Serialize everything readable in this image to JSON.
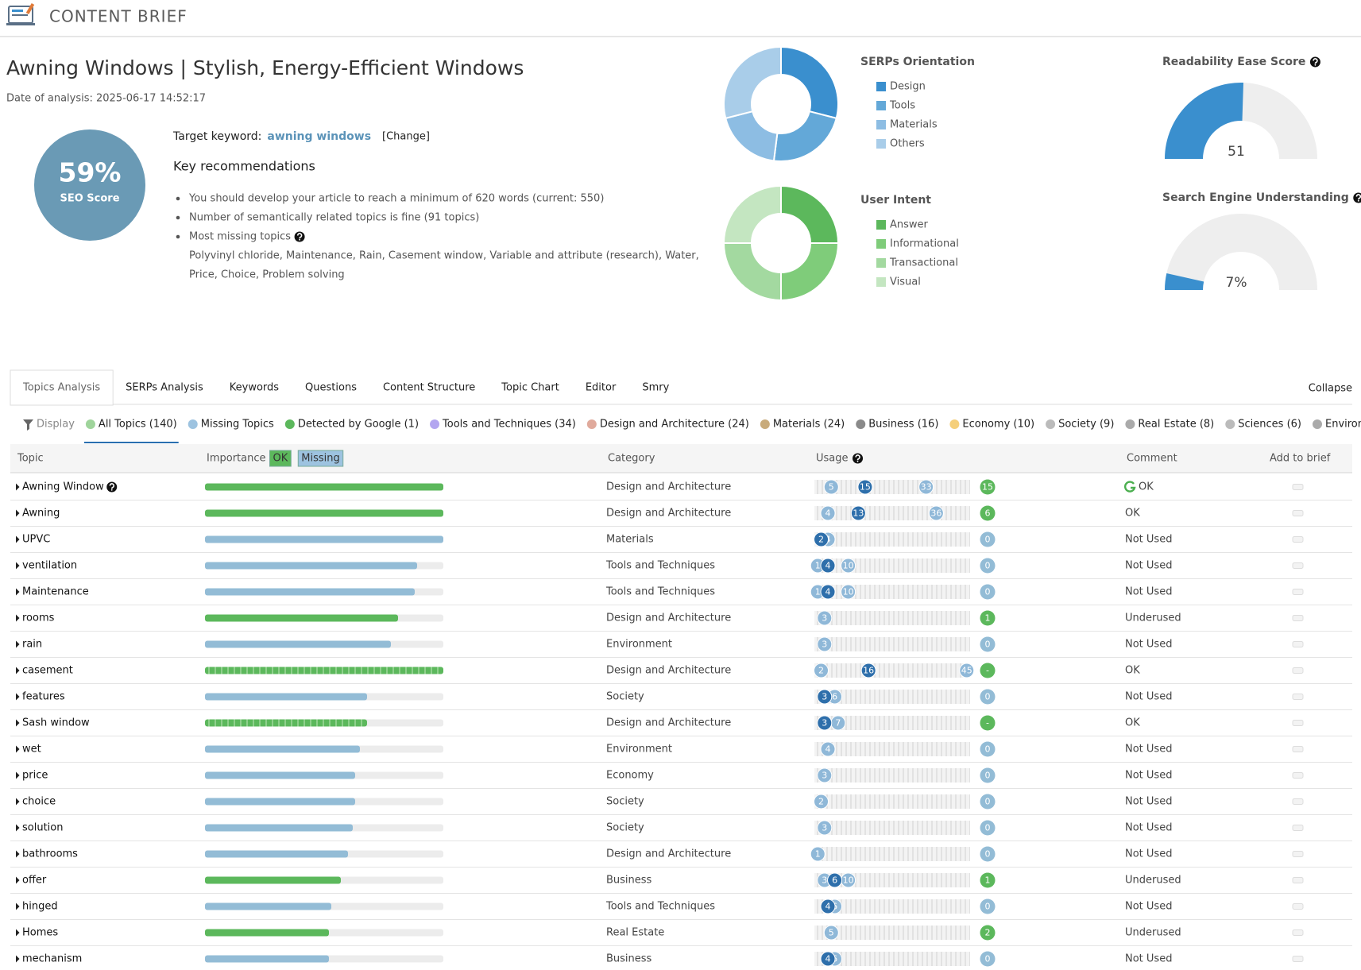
{
  "header": {
    "title": "CONTENT BRIEF"
  },
  "page": {
    "title": "Awning Windows | Stylish, Energy-Efficient Windows",
    "date": "Date of analysis: 2025-06-17 14:52:17"
  },
  "seo_score": {
    "score": "59%",
    "label": "SEO Score"
  },
  "target": {
    "label": "Target keyword:",
    "keyword": "awning windows",
    "change": "[Change]"
  },
  "recommendations": {
    "title": "Key recommendations",
    "items": [
      "You should develop your article to reach a minimum of 620 words (current: 550)",
      "Number of semantically related topics is fine (91 topics)",
      "Most missing topics"
    ],
    "missing_topics": [
      "Polyvinyl chloride, Maintenance, Rain, Casement window, Variable and attribute (research), Water,",
      "Price, Choice, Problem solving"
    ]
  },
  "serps_orientation": {
    "type": "pie",
    "title": "SERPs Orientation",
    "categories": [
      "Design",
      "Tools",
      "Materials",
      "Others"
    ],
    "values": [
      29,
      23,
      19,
      29
    ],
    "colors": [
      "#3a8fce",
      "#63a8d8",
      "#8dbde3",
      "#a9cde9"
    ]
  },
  "user_intent": {
    "type": "pie",
    "title": "User Intent",
    "categories": [
      "Answer",
      "Informational",
      "Transactional",
      "Visual"
    ],
    "values": [
      25,
      25,
      25,
      25
    ],
    "colors": [
      "#5cb85c",
      "#7fcc7a",
      "#a3d9a0",
      "#c4e6c1"
    ]
  },
  "readability": {
    "type": "gauge",
    "title": "Readability Ease Score",
    "value": 51,
    "ylim": [
      0,
      100
    ],
    "color": "#3a8fce"
  },
  "understanding": {
    "type": "gauge",
    "title": "Search Engine Understanding",
    "value": 7,
    "value_label": "7%",
    "ylim": [
      0,
      100
    ],
    "color": "#3a8fce"
  },
  "tabs": {
    "items": [
      "Topics Analysis",
      "SERPs Analysis",
      "Keywords",
      "Questions",
      "Content Structure",
      "Topic Chart",
      "Editor",
      "Smry"
    ],
    "collapse": "Collapse"
  },
  "filters": {
    "display": "Display",
    "items": [
      {
        "label": "All Topics (140)",
        "color": "#9fd49b"
      },
      {
        "label": "Missing Topics",
        "color": "#9dc3e0"
      },
      {
        "label": "Detected by Google (1)",
        "color": "#5cb85c"
      },
      {
        "label": "Tools and Techniques (34)",
        "color": "#b3a6f0"
      },
      {
        "label": "Design and Architecture (24)",
        "color": "#e0aa9c"
      },
      {
        "label": "Materials (24)",
        "color": "#c8ab7c"
      },
      {
        "label": "Business (16)",
        "color": "#8a8a8a"
      },
      {
        "label": "Economy (10)",
        "color": "#f5cf7a"
      },
      {
        "label": "Society (9)",
        "color": "#bbbbbb"
      },
      {
        "label": "Real Estate (8)",
        "color": "#aaaaaa"
      },
      {
        "label": "Sciences (6)",
        "color": "#bbbbbb"
      },
      {
        "label": "Environme...",
        "color": "#aaaaaa"
      }
    ]
  },
  "table": {
    "headers": {
      "topic": "Topic",
      "importance": "Importance",
      "ok": "OK",
      "missing": "Missing",
      "category": "Category",
      "usage": "Usage",
      "comment": "Comment",
      "add": "Add to brief"
    },
    "importance_xlim": [
      0,
      100
    ],
    "usage_xlim": [
      0,
      46
    ],
    "rows": [
      {
        "topic": "Awning Window",
        "help": true,
        "importance": 100,
        "color": "#5cb85c",
        "category": "Design and Architecture",
        "usage": [
          5,
          15,
          33
        ],
        "count": 15,
        "comment": "OK",
        "google": true
      },
      {
        "topic": "Awning",
        "importance": 100,
        "color": "#5cb85c",
        "category": "Design and Architecture",
        "usage": [
          4,
          13,
          36
        ],
        "count": 6,
        "comment": "OK"
      },
      {
        "topic": "UPVC",
        "importance": 100,
        "color": "#93bcd6",
        "category": "Materials",
        "usage": [
          2,
          4
        ],
        "count": 0,
        "comment": "Not Used"
      },
      {
        "topic": "ventilation",
        "importance": 89,
        "color": "#93bcd6",
        "category": "Tools and Techniques",
        "usage": [
          1,
          4,
          10
        ],
        "count": 0,
        "comment": "Not Used"
      },
      {
        "topic": "Maintenance",
        "importance": 88,
        "color": "#93bcd6",
        "category": "Tools and Techniques",
        "usage": [
          1,
          4,
          10
        ],
        "count": 0,
        "comment": "Not Used"
      },
      {
        "topic": "rooms",
        "importance": 81,
        "color": "#5cb85c",
        "category": "Design and Architecture",
        "usage": [
          3
        ],
        "count": 1,
        "comment": "Underused"
      },
      {
        "topic": "rain",
        "importance": 78,
        "color": "#93bcd6",
        "category": "Environment",
        "usage": [
          3
        ],
        "count": 0,
        "comment": "Not Used"
      },
      {
        "topic": "casement",
        "importance": 100,
        "color": "#5cb85c",
        "striped": true,
        "category": "Design and Architecture",
        "usage": [
          2,
          16,
          45
        ],
        "count": "-",
        "comment": "OK"
      },
      {
        "topic": "features",
        "importance": 68,
        "color": "#93bcd6",
        "category": "Society",
        "usage": [
          3,
          6
        ],
        "count": 0,
        "comment": "Not Used"
      },
      {
        "topic": "Sash window",
        "importance": 68,
        "color": "#5cb85c",
        "striped": true,
        "category": "Design and Architecture",
        "usage": [
          3,
          7
        ],
        "count": "-",
        "comment": "OK"
      },
      {
        "topic": "wet",
        "importance": 65,
        "color": "#93bcd6",
        "category": "Environment",
        "usage": [
          4
        ],
        "count": 0,
        "comment": "Not Used"
      },
      {
        "topic": "price",
        "importance": 63,
        "color": "#93bcd6",
        "category": "Economy",
        "usage": [
          3
        ],
        "count": 0,
        "comment": "Not Used"
      },
      {
        "topic": "choice",
        "importance": 63,
        "color": "#93bcd6",
        "category": "Society",
        "usage": [
          2
        ],
        "count": 0,
        "comment": "Not Used"
      },
      {
        "topic": "solution",
        "importance": 62,
        "color": "#93bcd6",
        "category": "Society",
        "usage": [
          3
        ],
        "count": 0,
        "comment": "Not Used"
      },
      {
        "topic": "bathrooms",
        "importance": 60,
        "color": "#93bcd6",
        "category": "Design and Architecture",
        "usage": [
          1
        ],
        "count": 0,
        "comment": "Not Used"
      },
      {
        "topic": "offer",
        "importance": 57,
        "color": "#5cb85c",
        "category": "Business",
        "usage": [
          3,
          6,
          10
        ],
        "count": 1,
        "comment": "Underused"
      },
      {
        "topic": "hinged",
        "importance": 53,
        "color": "#93bcd6",
        "category": "Tools and Techniques",
        "usage": [
          4,
          6
        ],
        "count": 0,
        "comment": "Not Used"
      },
      {
        "topic": "Homes",
        "importance": 52,
        "color": "#5cb85c",
        "category": "Real Estate",
        "usage": [
          5
        ],
        "count": 2,
        "comment": "Underused"
      },
      {
        "topic": "mechanism",
        "importance": 52,
        "color": "#93bcd6",
        "category": "Business",
        "usage": [
          4,
          6
        ],
        "count": 0,
        "comment": "Not Used"
      }
    ]
  }
}
